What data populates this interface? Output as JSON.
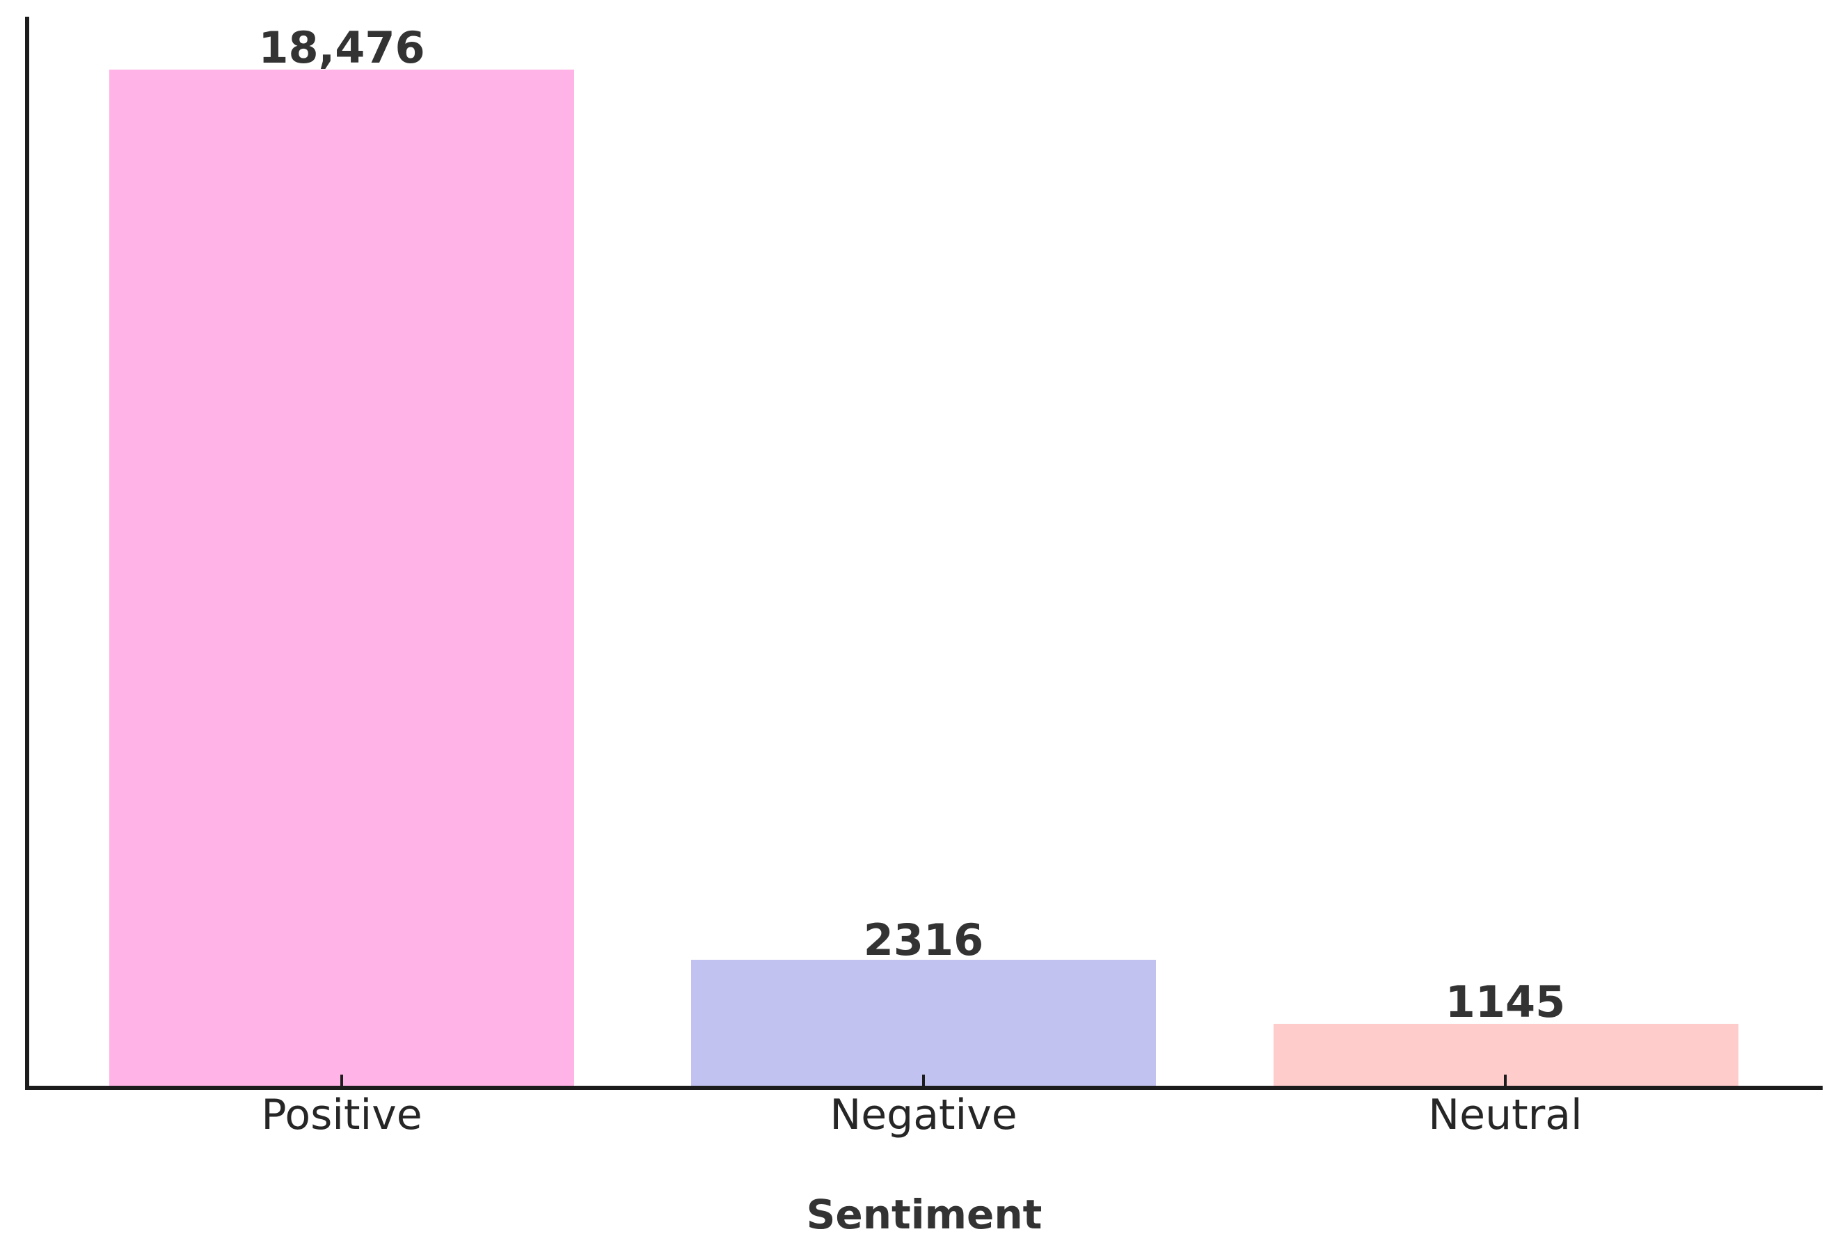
{
  "chart_data": {
    "type": "bar",
    "categories": [
      "Positive",
      "Negative",
      "Neutral"
    ],
    "values": [
      18476,
      2316,
      1145
    ],
    "value_labels": [
      "18,476",
      "2316",
      "1145"
    ],
    "bar_colors": [
      "#ffb3e6",
      "#c2c2f0",
      "#ffcccc"
    ],
    "title": "",
    "xlabel": "Sentiment",
    "ylabel": "",
    "ylim": [
      0,
      19400
    ],
    "grid": false,
    "legend": false,
    "axis_color": "#1c1c1c",
    "label_color": "#333333",
    "tick_direction": "in",
    "spines_visible": [
      "left",
      "bottom"
    ]
  }
}
